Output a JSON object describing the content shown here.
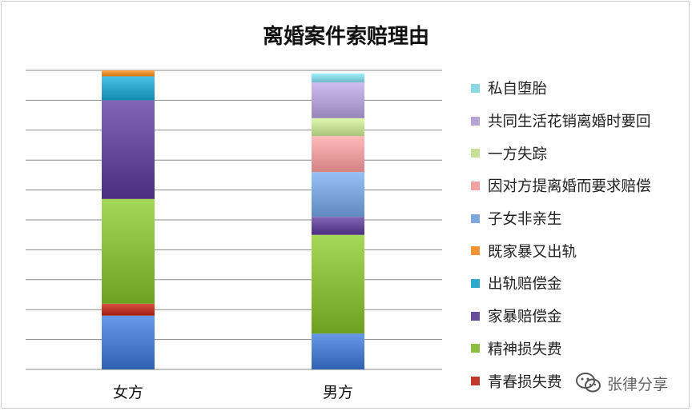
{
  "chart_data": {
    "type": "bar",
    "stacked": true,
    "title": "离婚案件索赔理由",
    "categories": [
      "女方",
      "男方"
    ],
    "ylim": [
      0,
      1
    ],
    "grid": true,
    "legend_position": "right",
    "series": [
      {
        "name": "青春损失费",
        "color": "#c0392b",
        "values": [
          0.04,
          0.0
        ]
      },
      {
        "name": "精神损失费",
        "color": "#8cbf3f",
        "values": [
          0.35,
          0.33
        ]
      },
      {
        "name": "家暴赔偿金",
        "color": "#6a4c9c",
        "values": [
          0.33,
          0.06
        ]
      },
      {
        "name": "出轨赔偿金",
        "color": "#31a9cf",
        "values": [
          0.08,
          0.0
        ]
      },
      {
        "name": "既家暴又出轨",
        "color": "#f39233",
        "values": [
          0.02,
          0.0
        ]
      },
      {
        "name": "子女非亲生",
        "color": "#7ea7de",
        "values": [
          0.0,
          0.15
        ]
      },
      {
        "name": "因对方提离婚而要求赔偿",
        "color": "#f1a1a1",
        "values": [
          0.0,
          0.12
        ]
      },
      {
        "name": "一方失踪",
        "color": "#c6e195",
        "values": [
          0.0,
          0.06
        ]
      },
      {
        "name": "共同生活花销离婚时要回",
        "color": "#b7a4d6",
        "values": [
          0.0,
          0.12
        ]
      },
      {
        "name": "私自堕胎",
        "color": "#8ad7e6",
        "values": [
          0.0,
          0.03
        ]
      }
    ],
    "base_segment": {
      "color": "#4f7fcf",
      "values": [
        0.18,
        0.12
      ]
    }
  },
  "watermark": {
    "text": "张律分享",
    "icon": "wechat-icon"
  }
}
